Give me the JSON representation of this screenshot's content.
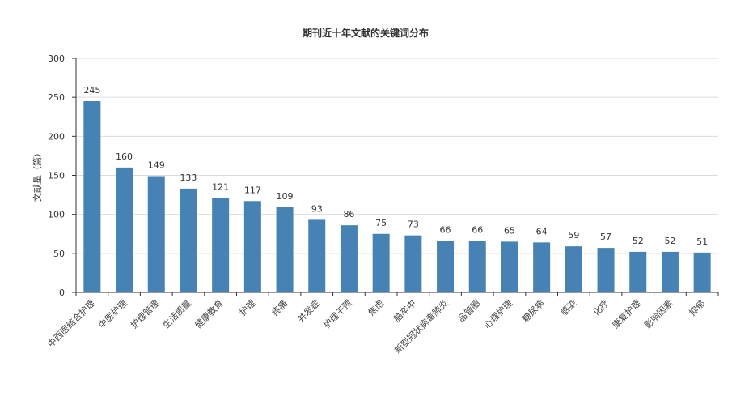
{
  "chart_data": {
    "type": "bar",
    "title": "期刊近十年文献的关键词分布",
    "ylabel": "文献量（篇）",
    "xlabel": "",
    "ylim": [
      0,
      300
    ],
    "yticks": [
      0,
      50,
      100,
      150,
      200,
      250,
      300
    ],
    "grid": true,
    "bar_color": "#4682b4",
    "categories": [
      "中西医结合护理",
      "中医护理",
      "护理管理",
      "生活质量",
      "健康教育",
      "护理",
      "疼痛",
      "并发症",
      "护理干预",
      "焦虑",
      "脑卒中",
      "新型冠状病毒肺炎",
      "品管圈",
      "心理护理",
      "糖尿病",
      "感染",
      "化疗",
      "康复护理",
      "影响因素",
      "抑郁"
    ],
    "values": [
      245,
      160,
      149,
      133,
      121,
      117,
      109,
      93,
      86,
      75,
      73,
      66,
      66,
      65,
      64,
      59,
      57,
      52,
      52,
      51
    ]
  }
}
